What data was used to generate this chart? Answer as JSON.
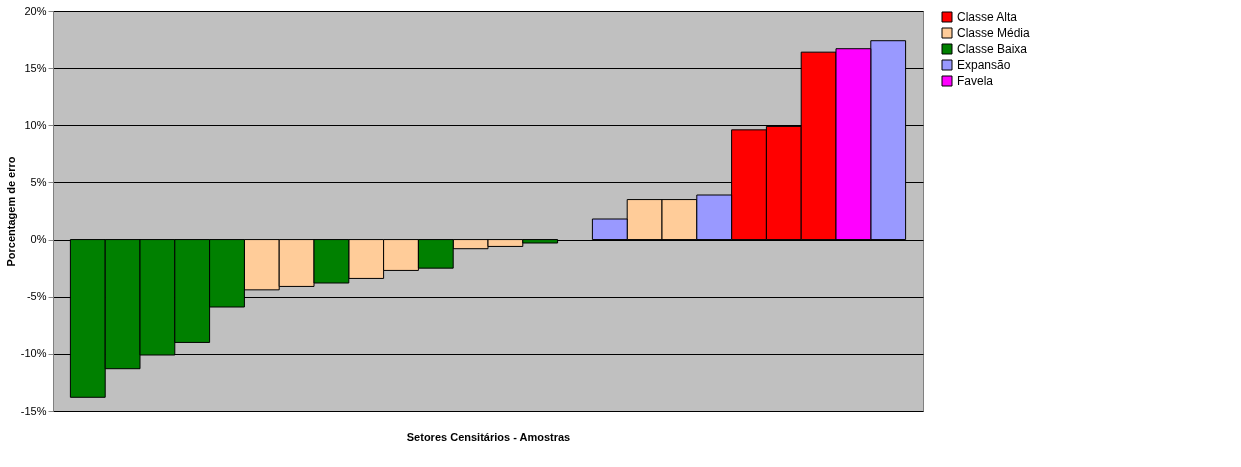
{
  "chart_data": {
    "type": "bar",
    "xlabel": "Setores Censitários - Amostras",
    "ylabel": "Porcentagem de erro",
    "categories": [
      null,
      null,
      null,
      null,
      null,
      null,
      null,
      null,
      null,
      null,
      null,
      null,
      null,
      null,
      null,
      null,
      null,
      null,
      null,
      null,
      null,
      null,
      null,
      null
    ],
    "series": [
      {
        "name": "Classe Alta",
        "color": "#ff0000",
        "values": [
          null,
          null,
          null,
          null,
          null,
          null,
          null,
          null,
          null,
          null,
          null,
          null,
          null,
          null,
          null,
          null,
          null,
          null,
          null,
          9.6,
          9.9,
          16.4,
          null,
          null
        ]
      },
      {
        "name": "Classe Média",
        "color": "#ffcc99",
        "values": [
          null,
          null,
          null,
          null,
          null,
          -4.4,
          -4.1,
          null,
          -3.4,
          -2.7,
          null,
          -0.8,
          -0.6,
          null,
          null,
          null,
          3.5,
          3.5,
          null,
          null,
          null,
          null,
          null,
          null
        ]
      },
      {
        "name": "Classe Baixa",
        "color": "#008000",
        "values": [
          -13.8,
          -11.3,
          -10.1,
          -9.0,
          -5.9,
          null,
          null,
          -3.8,
          null,
          null,
          -2.5,
          null,
          null,
          -0.3,
          null,
          null,
          null,
          null,
          null,
          null,
          null,
          null,
          null,
          null
        ]
      },
      {
        "name": "Expansão",
        "color": "#9999ff",
        "values": [
          null,
          null,
          null,
          null,
          null,
          null,
          null,
          null,
          null,
          null,
          null,
          null,
          null,
          null,
          null,
          1.8,
          null,
          null,
          3.9,
          null,
          null,
          null,
          null,
          17.4
        ]
      },
      {
        "name": "Favela",
        "color": "#ff00ff",
        "values": [
          null,
          null,
          null,
          null,
          null,
          null,
          null,
          null,
          null,
          null,
          null,
          null,
          null,
          null,
          null,
          null,
          null,
          null,
          null,
          null,
          null,
          null,
          16.7,
          null
        ]
      }
    ],
    "ylim": [
      -15,
      20
    ],
    "yticks": [
      {
        "value": -15,
        "label": "-15%"
      },
      {
        "value": -10,
        "label": "-10%"
      },
      {
        "value": -5,
        "label": "-5%"
      },
      {
        "value": 0,
        "label": "0%"
      },
      {
        "value": 5,
        "label": "5%"
      },
      {
        "value": 10,
        "label": "10%"
      },
      {
        "value": 15,
        "label": "15%"
      },
      {
        "value": 20,
        "label": "20%"
      }
    ],
    "grid": "y",
    "legend": "right",
    "tick_labels": "y"
  }
}
